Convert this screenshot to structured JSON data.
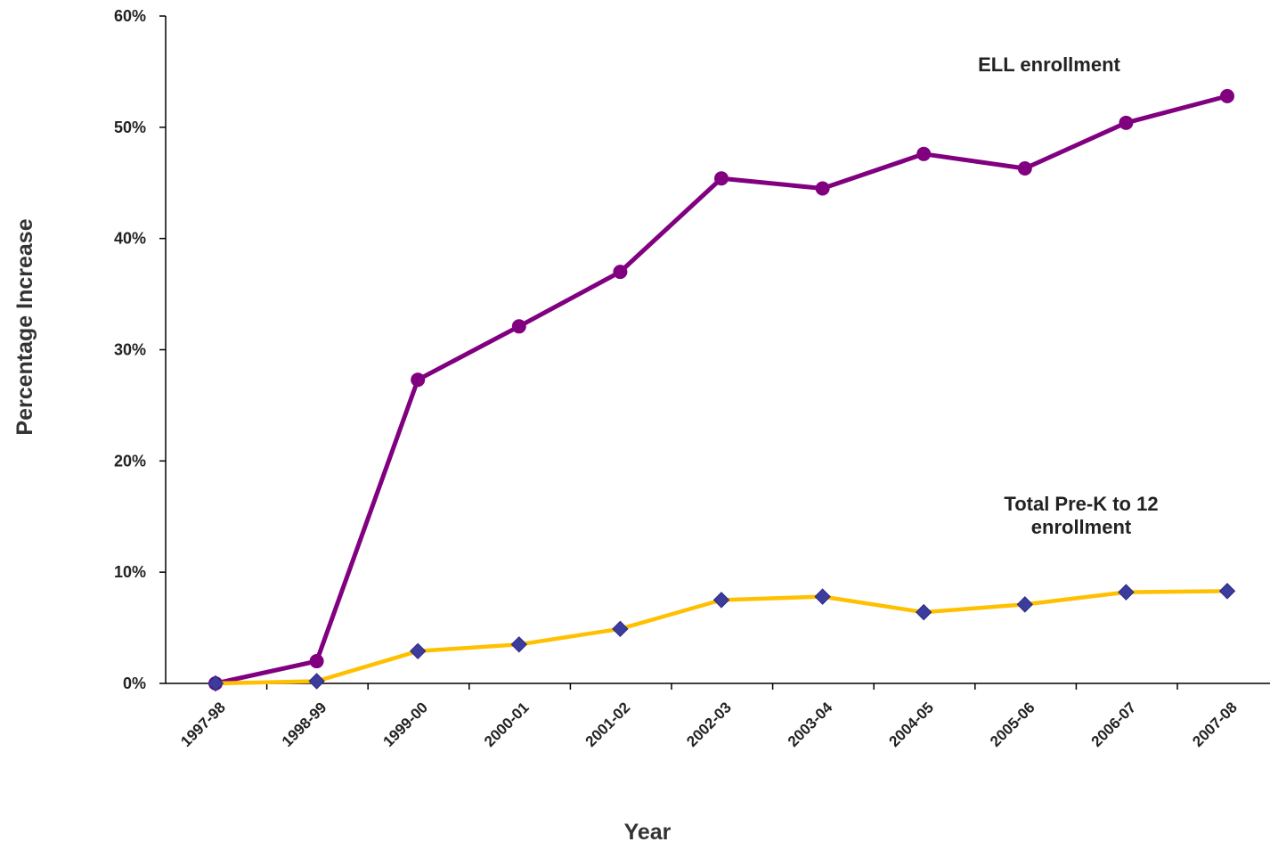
{
  "chart_data": {
    "type": "line",
    "title": "",
    "xlabel": "Year",
    "ylabel": "Percentage Increase",
    "ylim": [
      0,
      60
    ],
    "yticks": [
      "0%",
      "10%",
      "20%",
      "30%",
      "40%",
      "50%",
      "60%"
    ],
    "grid": false,
    "legend": "inline labels",
    "categories": [
      "1997-98",
      "1998-99",
      "1999-00",
      "2000-01",
      "2001-02",
      "2002-03",
      "2003-04",
      "2004-05",
      "2005-06",
      "2006-07",
      "2007-08"
    ],
    "series": [
      {
        "name": "ELL enrollment",
        "label_lines": [
          "ELL enrollment"
        ],
        "color": "#800080",
        "marker": "circle",
        "values": [
          0,
          2.0,
          27.3,
          32.1,
          37.0,
          45.4,
          44.5,
          47.6,
          46.3,
          50.4,
          52.8
        ]
      },
      {
        "name": "Total Pre-K to 12 enrollment",
        "label_lines": [
          "Total Pre-K to 12",
          "enrollment"
        ],
        "color": "#ffc000",
        "marker_color": "#3c3c9c",
        "marker": "diamond",
        "values": [
          0,
          0.2,
          2.9,
          3.5,
          4.9,
          7.5,
          7.8,
          6.4,
          7.1,
          8.2,
          8.3
        ]
      }
    ]
  }
}
